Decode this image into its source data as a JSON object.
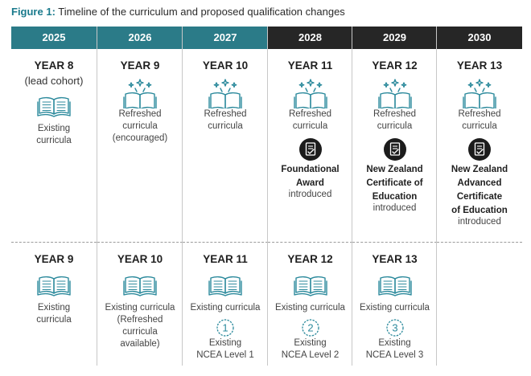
{
  "title": {
    "label": "Figure 1:",
    "text": "Timeline of the curriculum and proposed qualification changes"
  },
  "colors": {
    "teal": "#2b7b88",
    "dark": "#262626",
    "icon": "#2c8a9c"
  },
  "columns": [
    {
      "year": "2025",
      "header_color": "#2b7b88",
      "top": {
        "year_label": "YEAR 8",
        "lead": "(lead cohort)",
        "icon": "open-book-icon",
        "desc": [
          "Existing",
          "curricula"
        ]
      },
      "bottom": {
        "year_label": "YEAR 9",
        "icon": "open-book-icon",
        "desc": [
          "Existing",
          "curricula"
        ]
      }
    },
    {
      "year": "2026",
      "header_color": "#2b7b88",
      "top": {
        "year_label": "YEAR 9",
        "icon": "sparkle-book-icon",
        "desc": [
          "Refreshed",
          "curricula",
          "(encouraged)"
        ]
      },
      "bottom": {
        "year_label": "YEAR 10",
        "icon": "open-book-icon",
        "desc": [
          "Existing curricula",
          "(Refreshed",
          "curricula",
          "available)"
        ]
      }
    },
    {
      "year": "2027",
      "header_color": "#2b7b88",
      "top": {
        "year_label": "YEAR 10",
        "icon": "sparkle-book-icon",
        "desc": [
          "Refreshed",
          "curricula"
        ]
      },
      "bottom": {
        "year_label": "YEAR 11",
        "icon": "open-book-icon",
        "desc": [
          "Existing curricula"
        ],
        "number": "1",
        "ncea": [
          "Existing",
          "NCEA Level 1"
        ]
      }
    },
    {
      "year": "2028",
      "header_color": "#262626",
      "top": {
        "year_label": "YEAR 11",
        "icon": "sparkle-book-icon",
        "desc": [
          "Refreshed",
          "curricula"
        ],
        "badge": "certificate-badge-icon",
        "qual": [
          "Foundational",
          "Award"
        ],
        "intro": "introduced"
      },
      "bottom": {
        "year_label": "YEAR 12",
        "icon": "open-book-icon",
        "desc": [
          "Existing curricula"
        ],
        "number": "2",
        "ncea": [
          "Existing",
          "NCEA Level 2"
        ]
      }
    },
    {
      "year": "2029",
      "header_color": "#262626",
      "top": {
        "year_label": "YEAR 12",
        "icon": "sparkle-book-icon",
        "desc": [
          "Refreshed",
          "curricula"
        ],
        "badge": "certificate-badge-icon",
        "qual": [
          "New Zealand",
          "Certificate of",
          "Education"
        ],
        "intro": "introduced"
      },
      "bottom": {
        "year_label": "YEAR 13",
        "icon": "open-book-icon",
        "desc": [
          "Existing curricula"
        ],
        "number": "3",
        "ncea": [
          "Existing",
          "NCEA Level 3"
        ]
      }
    },
    {
      "year": "2030",
      "header_color": "#262626",
      "top": {
        "year_label": "YEAR 13",
        "icon": "sparkle-book-icon",
        "desc": [
          "Refreshed",
          "curricula"
        ],
        "badge": "certificate-badge-icon",
        "qual": [
          "New Zealand",
          "Advanced",
          "Certificate",
          "of Education"
        ],
        "intro": "introduced"
      },
      "bottom": null
    }
  ]
}
